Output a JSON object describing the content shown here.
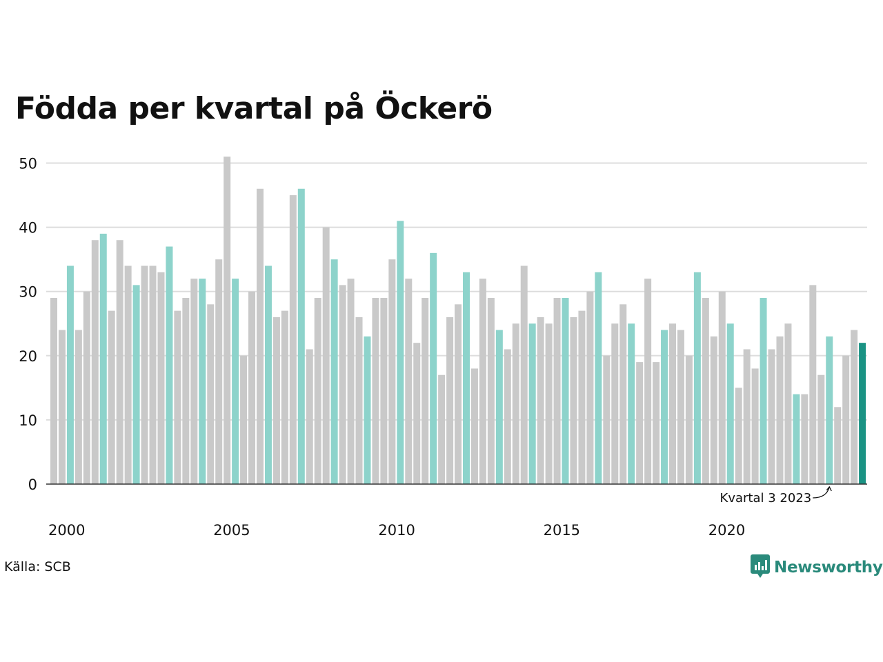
{
  "chart_data": {
    "type": "bar",
    "title": "Födda per kvartal på Öckerö",
    "xlabel": "",
    "ylabel": "",
    "ylim": [
      0,
      52
    ],
    "y_ticks": [
      0,
      10,
      20,
      30,
      40,
      50
    ],
    "x_ticks": [
      {
        "label": "2000",
        "year": 2000
      },
      {
        "label": "2005",
        "year": 2005
      },
      {
        "label": "2010",
        "year": 2010
      },
      {
        "label": "2015",
        "year": 2015
      },
      {
        "label": "2020",
        "year": 2020
      }
    ],
    "grid": true,
    "start": {
      "year": 2000,
      "quarter": 1
    },
    "values": [
      29,
      24,
      34,
      24,
      30,
      38,
      39,
      27,
      38,
      34,
      31,
      34,
      34,
      33,
      37,
      27,
      29,
      32,
      32,
      28,
      35,
      51,
      32,
      20,
      30,
      46,
      34,
      26,
      27,
      45,
      46,
      21,
      29,
      40,
      35,
      31,
      32,
      26,
      23,
      29,
      29,
      35,
      41,
      32,
      22,
      29,
      36,
      17,
      26,
      28,
      33,
      18,
      32,
      29,
      24,
      21,
      25,
      34,
      25,
      26,
      25,
      29,
      29,
      26,
      27,
      30,
      33,
      20,
      25,
      28,
      25,
      19,
      32,
      19,
      24,
      25,
      24,
      20,
      33,
      29,
      23,
      30,
      25,
      15,
      21,
      18,
      29,
      21,
      23,
      25,
      14,
      14,
      31,
      17,
      23,
      12,
      20,
      24,
      22
    ],
    "highlight_quarter": 3,
    "colors": {
      "default": "#c9c9c9",
      "highlight": "#8dd3cb",
      "latest": "#1a9384",
      "gridline": "#dddddd",
      "axis": "#333333"
    },
    "annotation": {
      "text": "Kvartal 3 2023",
      "year": 2023,
      "quarter": 3
    }
  },
  "footer": {
    "source": "Källa: SCB",
    "logo_text": "Newsworthy",
    "logo_icon": "bar-chart-speech-bubble-icon"
  }
}
